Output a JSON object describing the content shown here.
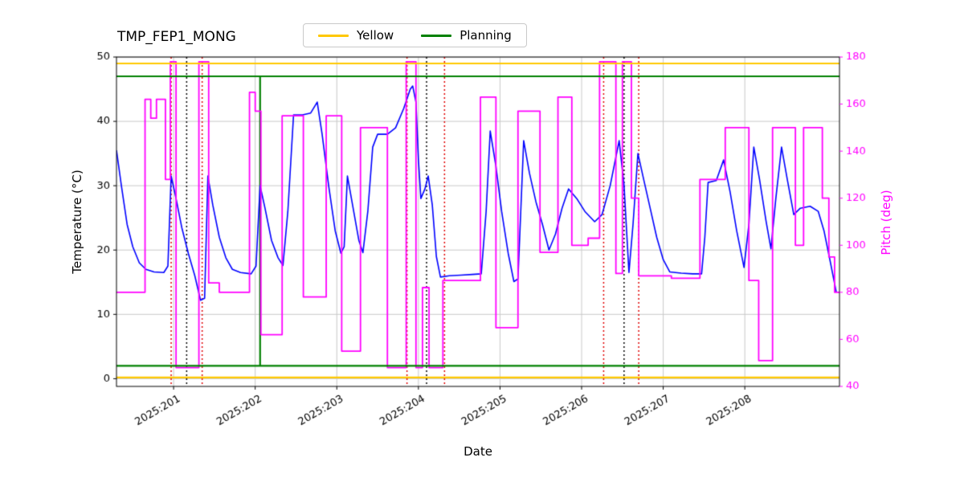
{
  "title": "TMP_FEP1_MONG",
  "legend": {
    "items": [
      {
        "label": "Yellow",
        "color": "#ffc800"
      },
      {
        "label": "Planning",
        "color": "#008000"
      }
    ]
  },
  "axes": {
    "x_label": "Date",
    "y_left_label": "Temperature (°C)",
    "y_right_label": "Pitch (deg)",
    "y_right_color": "#ff00ff"
  },
  "chart_data": {
    "type": "line",
    "title": "TMP_FEP1_MONG",
    "xlabel": "Date",
    "ylabel_left": "Temperature (°C)",
    "ylabel_right": "Pitch (deg)",
    "xlim": [
      200.3,
      209.16
    ],
    "ylim_left": [
      -1.2,
      50
    ],
    "ylim_right": [
      40,
      180
    ],
    "x_ticks": [
      201,
      202,
      203,
      204,
      205,
      206,
      207,
      208
    ],
    "x_tick_labels": [
      "2025:201",
      "2025:202",
      "2025:203",
      "2025:204",
      "2025:205",
      "2025:206",
      "2025:207",
      "2025:208"
    ],
    "y_ticks_left": [
      0,
      10,
      20,
      30,
      40,
      50
    ],
    "y_ticks_right": [
      40,
      60,
      80,
      100,
      120,
      140,
      160,
      180
    ],
    "grid": true,
    "grid_color": "#c8c8c8",
    "series": [
      {
        "name": "temperature",
        "axis": "left",
        "color": "#0000ff",
        "width": 1.6,
        "mode": "line",
        "points": [
          [
            200.3,
            35.5
          ],
          [
            200.36,
            30.0
          ],
          [
            200.43,
            24.0
          ],
          [
            200.5,
            20.5
          ],
          [
            200.58,
            18.0
          ],
          [
            200.66,
            17.0
          ],
          [
            200.76,
            16.6
          ],
          [
            200.88,
            16.5
          ],
          [
            200.93,
            17.5
          ],
          [
            200.97,
            31.5
          ],
          [
            201.03,
            28.0
          ],
          [
            201.1,
            23.5
          ],
          [
            201.18,
            19.5
          ],
          [
            201.26,
            16.0
          ],
          [
            201.33,
            12.2
          ],
          [
            201.38,
            12.5
          ],
          [
            201.42,
            31.5
          ],
          [
            201.48,
            27.0
          ],
          [
            201.56,
            22.0
          ],
          [
            201.64,
            18.8
          ],
          [
            201.72,
            17.0
          ],
          [
            201.82,
            16.5
          ],
          [
            201.95,
            16.3
          ],
          [
            202.01,
            17.5
          ],
          [
            202.06,
            30.0
          ],
          [
            202.12,
            26.5
          ],
          [
            202.2,
            21.5
          ],
          [
            202.28,
            18.8
          ],
          [
            202.34,
            17.6
          ],
          [
            202.4,
            26.0
          ],
          [
            202.47,
            41.0
          ],
          [
            202.58,
            41.0
          ],
          [
            202.68,
            41.3
          ],
          [
            202.76,
            43.0
          ],
          [
            202.82,
            38.0
          ],
          [
            202.9,
            30.0
          ],
          [
            202.98,
            23.0
          ],
          [
            203.05,
            19.5
          ],
          [
            203.09,
            20.5
          ],
          [
            203.13,
            31.5
          ],
          [
            203.2,
            26.5
          ],
          [
            203.27,
            21.5
          ],
          [
            203.32,
            19.6
          ],
          [
            203.38,
            26.0
          ],
          [
            203.44,
            36.0
          ],
          [
            203.5,
            38.0
          ],
          [
            203.62,
            38.0
          ],
          [
            203.72,
            39.0
          ],
          [
            203.82,
            42.0
          ],
          [
            203.9,
            45.0
          ],
          [
            203.93,
            45.5
          ],
          [
            203.97,
            43.0
          ],
          [
            204.0,
            34.0
          ],
          [
            204.03,
            28.0
          ],
          [
            204.08,
            29.5
          ],
          [
            204.12,
            31.5
          ],
          [
            204.17,
            27.0
          ],
          [
            204.22,
            19.0
          ],
          [
            204.27,
            15.8
          ],
          [
            204.38,
            16.0
          ],
          [
            204.52,
            16.1
          ],
          [
            204.66,
            16.2
          ],
          [
            204.77,
            16.3
          ],
          [
            204.83,
            26.0
          ],
          [
            204.88,
            38.5
          ],
          [
            204.95,
            33.0
          ],
          [
            205.02,
            26.0
          ],
          [
            205.1,
            19.5
          ],
          [
            205.17,
            15.1
          ],
          [
            205.22,
            15.5
          ],
          [
            205.29,
            37.0
          ],
          [
            205.36,
            32.0
          ],
          [
            205.44,
            27.5
          ],
          [
            205.52,
            24.0
          ],
          [
            205.6,
            20.0
          ],
          [
            205.68,
            22.5
          ],
          [
            205.76,
            26.5
          ],
          [
            205.84,
            29.5
          ],
          [
            205.94,
            28.0
          ],
          [
            206.04,
            26.0
          ],
          [
            206.16,
            24.4
          ],
          [
            206.25,
            25.5
          ],
          [
            206.35,
            30.0
          ],
          [
            206.46,
            37.0
          ],
          [
            206.52,
            30.0
          ],
          [
            206.58,
            16.5
          ],
          [
            206.63,
            24.0
          ],
          [
            206.69,
            35.0
          ],
          [
            206.76,
            31.0
          ],
          [
            206.84,
            26.5
          ],
          [
            206.92,
            22.0
          ],
          [
            207.0,
            18.5
          ],
          [
            207.08,
            16.6
          ],
          [
            207.22,
            16.4
          ],
          [
            207.36,
            16.3
          ],
          [
            207.47,
            16.3
          ],
          [
            207.51,
            22.0
          ],
          [
            207.55,
            30.5
          ],
          [
            207.65,
            30.8
          ],
          [
            207.74,
            34.0
          ],
          [
            207.82,
            29.0
          ],
          [
            207.9,
            23.0
          ],
          [
            207.99,
            17.3
          ],
          [
            208.05,
            24.0
          ],
          [
            208.11,
            36.0
          ],
          [
            208.18,
            31.0
          ],
          [
            208.26,
            24.5
          ],
          [
            208.32,
            20.2
          ],
          [
            208.38,
            28.0
          ],
          [
            208.45,
            36.0
          ],
          [
            208.52,
            31.0
          ],
          [
            208.6,
            25.5
          ],
          [
            208.68,
            26.5
          ],
          [
            208.8,
            26.8
          ],
          [
            208.9,
            26.0
          ],
          [
            208.97,
            23.0
          ],
          [
            209.05,
            18.0
          ],
          [
            209.12,
            13.5
          ]
        ]
      },
      {
        "name": "pitch",
        "axis": "right",
        "color": "#ff00ff",
        "width": 1.8,
        "mode": "step",
        "points": [
          [
            200.3,
            80
          ],
          [
            200.65,
            162
          ],
          [
            200.72,
            154
          ],
          [
            200.79,
            162
          ],
          [
            200.9,
            128
          ],
          [
            200.96,
            178
          ],
          [
            201.03,
            48
          ],
          [
            201.31,
            178
          ],
          [
            201.43,
            84
          ],
          [
            201.56,
            80
          ],
          [
            201.93,
            165
          ],
          [
            202.0,
            157
          ],
          [
            202.07,
            62
          ],
          [
            202.33,
            155
          ],
          [
            202.59,
            78
          ],
          [
            202.87,
            155
          ],
          [
            203.06,
            55
          ],
          [
            203.29,
            150
          ],
          [
            203.62,
            48
          ],
          [
            203.85,
            178
          ],
          [
            203.97,
            48
          ],
          [
            204.05,
            82
          ],
          [
            204.13,
            48
          ],
          [
            204.3,
            85
          ],
          [
            204.76,
            163
          ],
          [
            204.95,
            65
          ],
          [
            205.22,
            157
          ],
          [
            205.49,
            97
          ],
          [
            205.71,
            163
          ],
          [
            205.88,
            100
          ],
          [
            206.08,
            103
          ],
          [
            206.22,
            178
          ],
          [
            206.42,
            88
          ],
          [
            206.5,
            178
          ],
          [
            206.61,
            120
          ],
          [
            206.7,
            87
          ],
          [
            207.1,
            86
          ],
          [
            207.45,
            128
          ],
          [
            207.76,
            150
          ],
          [
            208.05,
            85
          ],
          [
            208.17,
            51
          ],
          [
            208.34,
            150
          ],
          [
            208.62,
            100
          ],
          [
            208.72,
            150
          ],
          [
            208.95,
            120
          ],
          [
            209.03,
            95
          ],
          [
            209.1,
            80
          ],
          [
            209.16,
            80
          ]
        ]
      }
    ],
    "hlines": [
      {
        "name": "yellow-high-limit",
        "y": 49.0,
        "color": "#ffc800",
        "width": 2.2
      },
      {
        "name": "yellow-low-limit",
        "y": 0.2,
        "color": "#ffc800",
        "width": 2.2
      },
      {
        "name": "planning-high-limit",
        "y": 47.0,
        "color": "#008000",
        "width": 2.2
      },
      {
        "name": "planning-low-limit",
        "y": 2.0,
        "color": "#008000",
        "width": 2.2
      }
    ],
    "vlines": [
      {
        "name": "planning-marker",
        "x": 202.06,
        "color": "#008000",
        "style": "solid",
        "width": 2.2,
        "y_from": 2,
        "y_to": 47
      },
      {
        "name": "red-marker-1",
        "x": 200.97,
        "color": "#e00000",
        "style": "dotted",
        "width": 1.5
      },
      {
        "name": "red-marker-2",
        "x": 201.35,
        "color": "#e00000",
        "style": "dotted",
        "width": 1.5
      },
      {
        "name": "red-marker-3",
        "x": 203.86,
        "color": "#e00000",
        "style": "dotted",
        "width": 1.5
      },
      {
        "name": "red-marker-4",
        "x": 204.32,
        "color": "#e00000",
        "style": "dotted",
        "width": 1.5
      },
      {
        "name": "red-marker-5",
        "x": 206.27,
        "color": "#e00000",
        "style": "dotted",
        "width": 1.5
      },
      {
        "name": "red-marker-6",
        "x": 206.7,
        "color": "#e00000",
        "style": "dotted",
        "width": 1.5
      },
      {
        "name": "black-marker-1",
        "x": 201.16,
        "color": "#000000",
        "style": "dotted",
        "width": 1.5
      },
      {
        "name": "black-marker-2",
        "x": 204.1,
        "color": "#000000",
        "style": "dotted",
        "width": 1.5
      },
      {
        "name": "black-marker-3",
        "x": 206.52,
        "color": "#000000",
        "style": "dotted",
        "width": 1.5
      }
    ]
  }
}
